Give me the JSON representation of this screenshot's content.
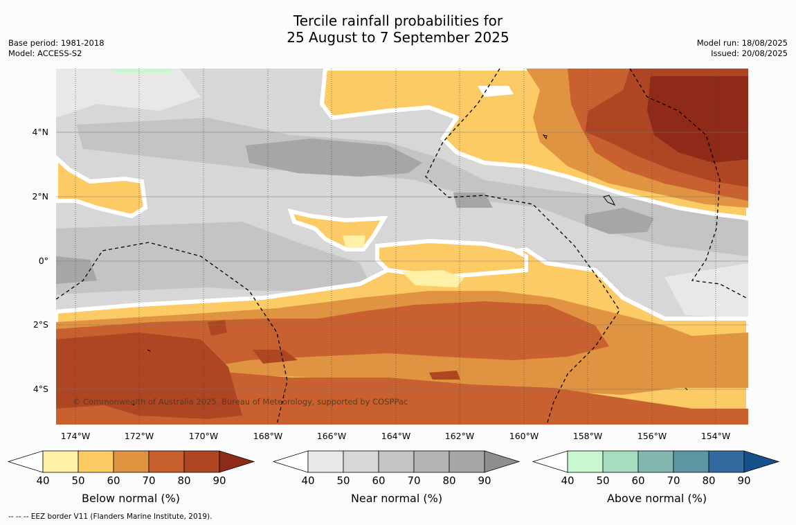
{
  "title": {
    "line1": "Tercile rainfall probabilities for",
    "line2": "25 August to 7 September 2025"
  },
  "meta_left": {
    "base_period": "Base period: 1981-2018",
    "model": "Model: ACCESS-S2"
  },
  "meta_right": {
    "model_run": "Model run: 18/08/2025",
    "issued": "Issued: 20/08/2025"
  },
  "map": {
    "lat_labels": [
      "4°N",
      "2°N",
      "0°",
      "2°S",
      "4°S"
    ],
    "lon_labels": [
      "174°W",
      "172°W",
      "170°W",
      "168°W",
      "166°W",
      "164°W",
      "162°W",
      "160°W",
      "158°W",
      "156°W",
      "154°W"
    ],
    "copyright": "© Commonwealth of Australia 2025, Bureau of Meteorology, supported by COSPPac"
  },
  "colorbars": [
    {
      "label": "Below normal (%)",
      "colors": [
        "#fff0a8",
        "#fdcb65",
        "#e09441",
        "#c8612f",
        "#ae4623",
        "#8f2a18"
      ],
      "ticks": [
        "40",
        "50",
        "60",
        "70",
        "80",
        "90"
      ]
    },
    {
      "label": "Near normal (%)",
      "colors": [
        "#e8e8e8",
        "#d7d7d7",
        "#c4c4c4",
        "#b5b5b5",
        "#a6a6a6",
        "#8e8e8e"
      ],
      "ticks": [
        "40",
        "50",
        "60",
        "70",
        "80",
        "90"
      ]
    },
    {
      "label": "Above normal (%)",
      "colors": [
        "#c9f7d0",
        "#a6dcc0",
        "#82b8b0",
        "#5d95a3",
        "#336aa0",
        "#16508a"
      ],
      "ticks": [
        "40",
        "50",
        "60",
        "70",
        "80",
        "90"
      ]
    }
  ],
  "footer": "--  --  -- EEZ border V11 (Flanders Marine Institute, 2019)."
}
